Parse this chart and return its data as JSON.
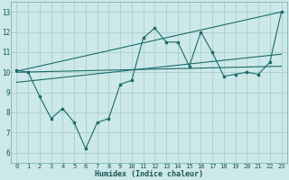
{
  "xlabel": "Humidex (Indice chaleur)",
  "xlim": [
    -0.5,
    23.5
  ],
  "ylim": [
    5.5,
    13.5
  ],
  "yticks": [
    6,
    7,
    8,
    9,
    10,
    11,
    12,
    13
  ],
  "xticks": [
    0,
    1,
    2,
    3,
    4,
    5,
    6,
    7,
    8,
    9,
    10,
    11,
    12,
    13,
    14,
    15,
    16,
    17,
    18,
    19,
    20,
    21,
    22,
    23
  ],
  "bg_color": "#cde8e8",
  "grid_color": "#aacece",
  "line_color": "#1a6b6b",
  "line1_x": [
    0,
    1,
    2,
    3,
    4,
    5,
    6,
    7,
    8,
    9,
    10,
    11,
    12,
    13,
    14,
    15,
    16,
    17,
    18,
    19,
    20,
    21,
    22,
    23
  ],
  "line1_y": [
    10.1,
    10.0,
    8.8,
    7.7,
    8.2,
    7.5,
    6.2,
    7.5,
    7.7,
    9.4,
    9.6,
    11.7,
    12.2,
    11.5,
    11.5,
    10.3,
    12.0,
    11.0,
    9.8,
    9.9,
    10.0,
    9.9,
    10.5,
    13.0
  ],
  "line2_x": [
    0,
    23
  ],
  "line2_y": [
    10.05,
    13.0
  ],
  "line3_x": [
    0,
    23
  ],
  "line3_y": [
    10.0,
    10.3
  ],
  "line4_x": [
    0,
    23
  ],
  "line4_y": [
    9.5,
    10.9
  ],
  "xlabel_fontsize": 6,
  "tick_fontsize": 5,
  "ytick_fontsize": 5.5
}
